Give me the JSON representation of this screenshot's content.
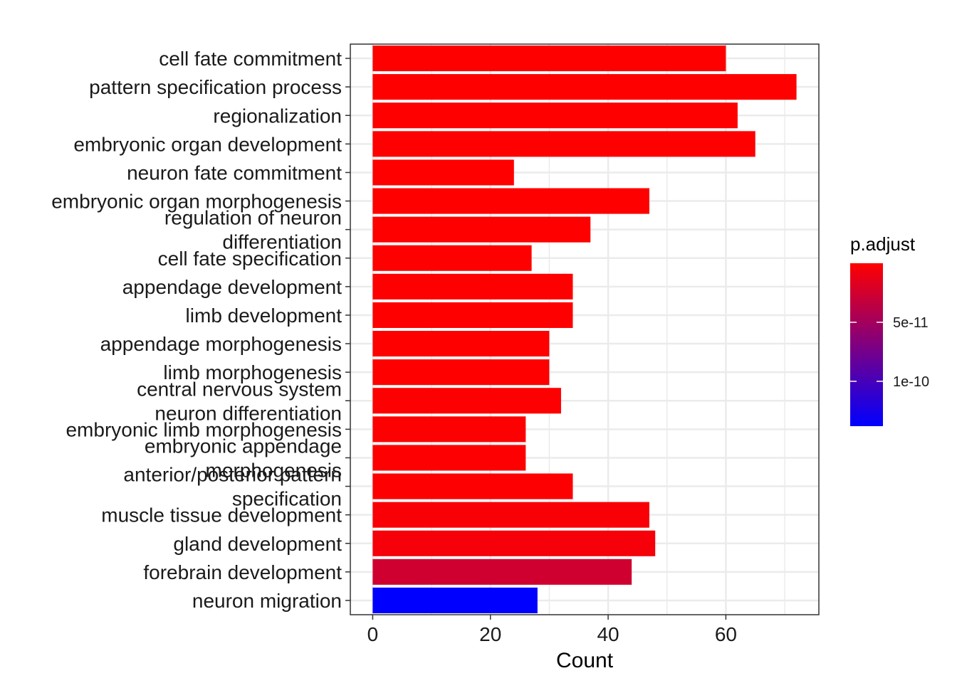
{
  "chart_data": {
    "type": "bar",
    "orientation": "horizontal",
    "categories": [
      [
        "cell fate commitment"
      ],
      [
        "pattern specification process"
      ],
      [
        "regionalization"
      ],
      [
        "embryonic organ development"
      ],
      [
        "neuron fate commitment"
      ],
      [
        "embryonic organ morphogenesis"
      ],
      [
        "regulation of neuron",
        "differentiation"
      ],
      [
        "cell fate specification"
      ],
      [
        "appendage development"
      ],
      [
        "limb development"
      ],
      [
        "appendage morphogenesis"
      ],
      [
        "limb morphogenesis"
      ],
      [
        "central nervous system",
        "neuron differentiation"
      ],
      [
        "embryonic limb morphogenesis"
      ],
      [
        "embryonic appendage",
        "morphogenesis"
      ],
      [
        "anterior/posterior pattern",
        "specification"
      ],
      [
        "muscle tissue development"
      ],
      [
        "gland development"
      ],
      [
        "forebrain development"
      ],
      [
        "neuron migration"
      ]
    ],
    "values": [
      60,
      72,
      62,
      65,
      24,
      47,
      37,
      27,
      34,
      34,
      30,
      30,
      32,
      26,
      26,
      34,
      47,
      48,
      44,
      28
    ],
    "p_adjust": [
      1e-20,
      1e-22,
      1e-21,
      1e-21,
      1e-16,
      1e-14,
      1e-13,
      1e-13,
      1e-13,
      1e-13,
      1e-13,
      1e-13,
      1e-12,
      1e-12,
      1e-12,
      1e-12,
      3e-12,
      5e-12,
      2.6e-11,
      1.38e-10
    ],
    "xlabel": "Count",
    "ylabel": "",
    "xlim": [
      -3.8,
      75.8
    ],
    "xticks": [
      0,
      20,
      40,
      60
    ],
    "grid": true,
    "legend": {
      "title": "p.adjust",
      "placement": "right",
      "type": "colorbar",
      "range": [
        0,
        1.38e-10
      ],
      "ticks": [
        {
          "value": 5e-11,
          "label": "5e-11"
        },
        {
          "value": 1e-10,
          "label": "1e-10"
        }
      ]
    },
    "colors": {
      "low": "#ff0000",
      "high": "#0000ff",
      "panel_border": "#333333",
      "grid": "#ebebeb"
    }
  }
}
